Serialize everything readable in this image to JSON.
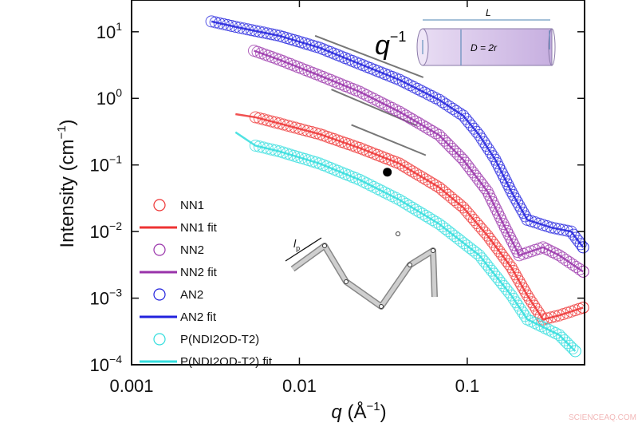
{
  "chart_data": {
    "type": "scatter",
    "xlabel": "q (Å⁻¹)",
    "xlabel_var": "q",
    "xlabel_unit": "(Å",
    "xlabel_exp": "−1",
    "ylabel": "Intensity (cm",
    "ylabel_exp": "−1",
    "xscale": "log",
    "yscale": "log",
    "xlim": [
      0.001,
      0.5
    ],
    "ylim": [
      0.0001,
      30
    ],
    "x_ticks": [
      {
        "v": 0.001,
        "label": "0.001"
      },
      {
        "v": 0.01,
        "label": "0.01"
      },
      {
        "v": 0.1,
        "label": "0.1"
      }
    ],
    "y_ticks": [
      {
        "v": 10,
        "exp": "1"
      },
      {
        "v": 1,
        "exp": "0"
      },
      {
        "v": 0.1,
        "exp": "−1"
      },
      {
        "v": 0.01,
        "exp": "−2"
      },
      {
        "v": 0.001,
        "exp": "−3"
      },
      {
        "v": 0.0001,
        "exp": "−4"
      }
    ],
    "y_tick_base": "10",
    "legend_placement": "left",
    "series": [
      {
        "name": "NN1",
        "fit_name": "NN1 fit",
        "color": "#ee3333",
        "q": [
          0.00547,
          0.0076,
          0.0132,
          0.0228,
          0.0394,
          0.068,
          0.0946,
          0.132,
          0.183,
          0.228,
          0.283,
          0.353,
          0.49
        ],
        "I": [
          0.52,
          0.42,
          0.29,
          0.18,
          0.105,
          0.046,
          0.023,
          0.0087,
          0.0029,
          0.0011,
          0.00048,
          0.00055,
          0.00072
        ],
        "fit_start": {
          "q": 0.00416,
          "I": 0.58
        }
      },
      {
        "name": "NN2",
        "fit_name": "NN2 fit",
        "color": "#9933aa",
        "q": [
          0.00536,
          0.0076,
          0.0132,
          0.0228,
          0.0394,
          0.068,
          0.0946,
          0.132,
          0.164,
          0.204,
          0.283,
          0.353,
          0.49
        ],
        "I": [
          5.2,
          3.8,
          2.2,
          1.26,
          0.63,
          0.28,
          0.12,
          0.04,
          0.013,
          0.0044,
          0.0058,
          0.0044,
          0.0025
        ],
        "fit_start": null
      },
      {
        "name": "AN2",
        "fit_name": "AN2 fit",
        "color": "#2222dd",
        "q": [
          0.00299,
          0.0044,
          0.0076,
          0.0132,
          0.0228,
          0.0394,
          0.068,
          0.0946,
          0.118,
          0.147,
          0.183,
          0.228,
          0.316,
          0.416,
          0.49
        ],
        "I": [
          14.3,
          11.5,
          8.7,
          5.75,
          3.3,
          1.9,
          0.95,
          0.55,
          0.28,
          0.12,
          0.04,
          0.015,
          0.0115,
          0.01,
          0.0058
        ],
        "fit_start": null
      },
      {
        "name": "P(NDI2OD-T2)",
        "fit_name": "P(NDI2OD-T2) fit",
        "color": "#33dddd",
        "q": [
          0.00547,
          0.0076,
          0.0132,
          0.0228,
          0.0394,
          0.068,
          0.118,
          0.183,
          0.228,
          0.353,
          0.44
        ],
        "I": [
          0.195,
          0.16,
          0.105,
          0.06,
          0.03,
          0.013,
          0.0044,
          0.0011,
          0.00048,
          0.00028,
          0.00016
        ],
        "fit_start": {
          "q": 0.00416,
          "I": 0.31
        }
      }
    ],
    "highlight_point": {
      "q": 0.0334,
      "I": 0.078,
      "color": "#000000"
    },
    "annotations": {
      "slope_label": "q",
      "slope_exp": "−1",
      "slope_lines": [
        {
          "q": [
            0.0124,
            0.0547
          ],
          "I": [
            8.7,
            2.07
          ]
        },
        {
          "q": [
            0.0155,
            0.05
          ],
          "I": [
            1.36,
            0.39
          ]
        },
        {
          "q": [
            0.0204,
            0.0566
          ],
          "I": [
            0.4,
            0.14
          ]
        }
      ],
      "cylinder_length": "L",
      "cylinder_diameter": "D = 2r",
      "persistence_length": "l",
      "persistence_sub": "p"
    }
  },
  "watermark": "SCIENCEAQ.COM"
}
